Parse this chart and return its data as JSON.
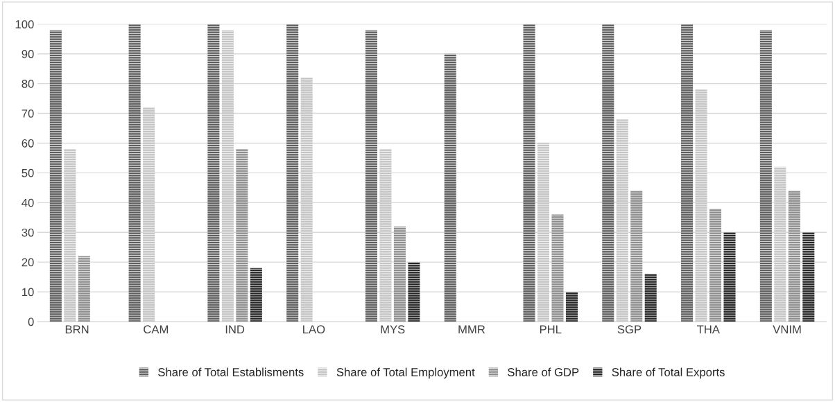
{
  "chart_data": {
    "type": "bar",
    "categories": [
      "BRN",
      "CAM",
      "IND",
      "LAO",
      "MYS",
      "MMR",
      "PHL",
      "SGP",
      "THA",
      "VNIM"
    ],
    "series": [
      {
        "name": "Share of Total Establisments",
        "color": "#5f5f5f",
        "values": [
          98,
          100,
          100,
          100,
          98,
          90,
          100,
          100,
          100,
          98
        ]
      },
      {
        "name": "Share of Total Employment",
        "color": "#c4c4c4",
        "values": [
          58,
          72,
          98,
          82,
          58,
          null,
          60,
          68,
          78,
          52
        ]
      },
      {
        "name": "Share of GDP",
        "color": "#8e8e8e",
        "values": [
          22,
          null,
          58,
          null,
          32,
          null,
          36,
          44,
          38,
          44
        ]
      },
      {
        "name": "Share of Total Exports",
        "color": "#262626",
        "values": [
          null,
          null,
          18,
          null,
          20,
          null,
          10,
          16,
          30,
          30
        ]
      }
    ],
    "ylim": [
      0,
      100
    ],
    "yticks": [
      0,
      10,
      20,
      30,
      40,
      50,
      60,
      70,
      80,
      90,
      100
    ],
    "grid": "y",
    "legend": "bottom"
  }
}
